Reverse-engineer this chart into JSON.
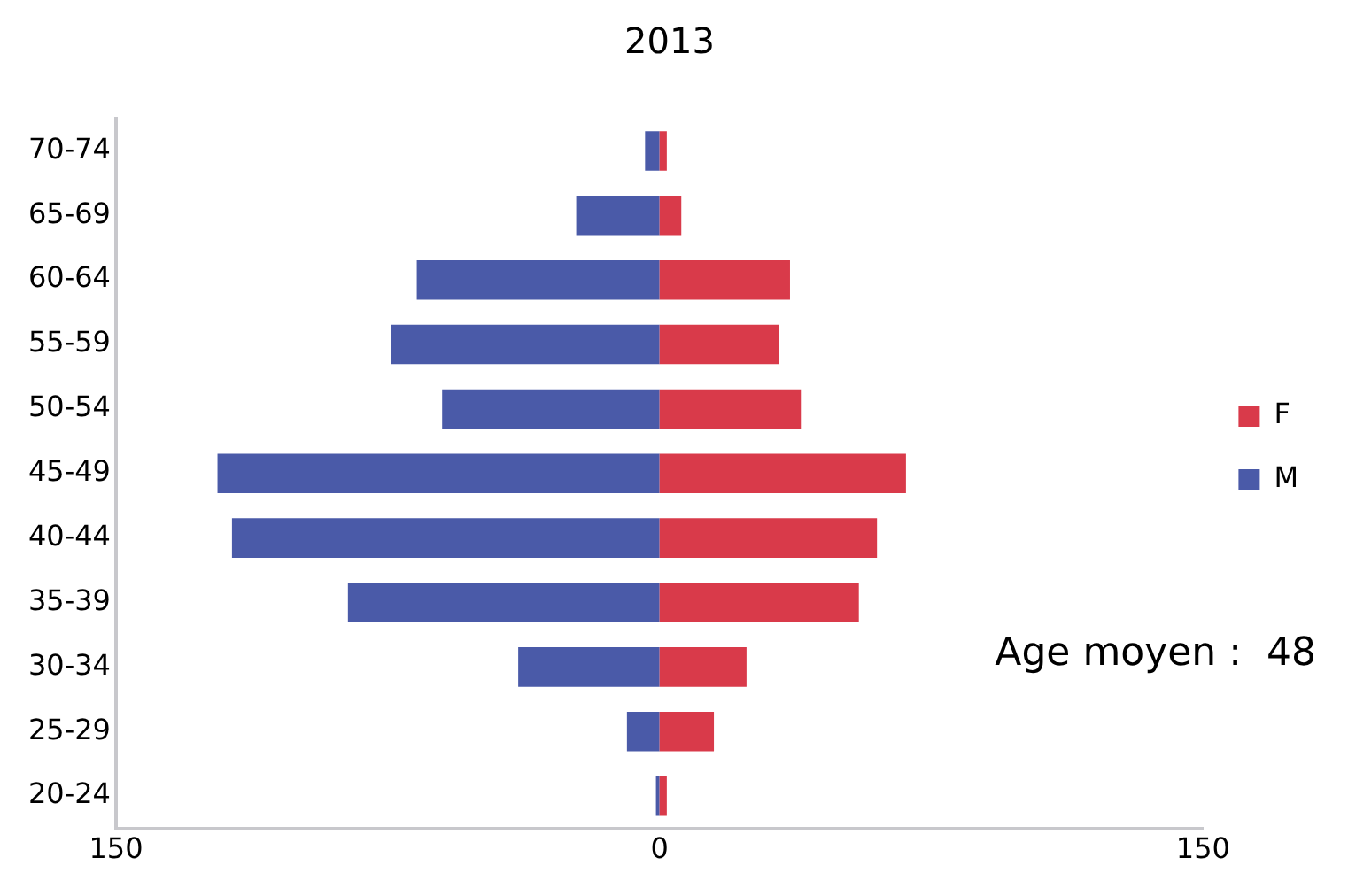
{
  "chart_data": {
    "type": "bar",
    "orientation": "horizontal",
    "stacked": true,
    "title": "2013",
    "categories": [
      "70-74",
      "65-69",
      "60-64",
      "55-59",
      "50-54",
      "45-49",
      "40-44",
      "35-39",
      "30-34",
      "25-29",
      "20-24"
    ],
    "series": [
      {
        "name": "F",
        "color": "#d93a4a",
        "values": [
          2,
          6,
          36,
          33,
          39,
          68,
          60,
          55,
          24,
          15,
          2
        ]
      },
      {
        "name": "M",
        "color": "#4a5aa8",
        "values": [
          -4,
          -23,
          -67,
          -74,
          -60,
          -122,
          -118,
          -86,
          -39,
          -9,
          -1
        ]
      }
    ],
    "xlim": [
      -150,
      150
    ],
    "xticks": [
      {
        "value": -150,
        "label": "150"
      },
      0,
      150
    ],
    "grid": false,
    "legend": "right",
    "annotations": [
      "Age moyen :  48"
    ]
  }
}
